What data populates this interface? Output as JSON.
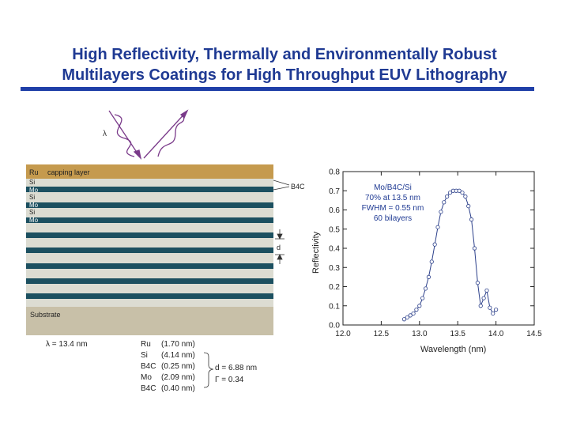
{
  "title": {
    "line1": "High Reflectivity, Thermally and Environmentally Robust",
    "line2": "Multilayers Coatings for High Throughput EUV Lithography"
  },
  "diagram": {
    "lambda_symbol": "λ",
    "capping_label_ru": "Ru",
    "capping_label_text": "capping layer",
    "layer_labels": [
      "Si",
      "Mo",
      "Si",
      "Mo",
      "Si",
      "Mo"
    ],
    "b4c_label": "B4C",
    "d_label": "d",
    "substrate_label": "Substrate",
    "wavelength_label": "λ = 13.4 nm",
    "materials": [
      {
        "name": "Ru",
        "thickness": "(1.70 nm)"
      },
      {
        "name": "Si",
        "thickness": "(4.14 nm)"
      },
      {
        "name": "B4C",
        "thickness": "(0.25 nm)"
      },
      {
        "name": "Mo",
        "thickness": "(2.09 nm)"
      },
      {
        "name": "B4C",
        "thickness": "(0.40 nm)"
      }
    ],
    "period": "d = 6.88 nm",
    "gamma": "Γ = 0.34",
    "colors": {
      "ru": "#c59a4e",
      "si": "#dcdcd2",
      "mo": "#1c5060",
      "substrate": "#c8c0a8"
    }
  },
  "chart_data": {
    "type": "scatter",
    "xlabel": "Wavelength (nm)",
    "ylabel": "Reflectivity",
    "xlim": [
      12.0,
      14.5
    ],
    "ylim": [
      0.0,
      0.8
    ],
    "xticks": [
      "12.0",
      "12.5",
      "13.0",
      "13.5",
      "14.0",
      "14.5"
    ],
    "yticks": [
      "0.0",
      "0.1",
      "0.2",
      "0.3",
      "0.4",
      "0.5",
      "0.6",
      "0.7",
      "0.8"
    ],
    "annotation": [
      "Mo/B4C/Si",
      "70% at 13.5 nm",
      "FWHM = 0.55 nm",
      "60 bilayers"
    ],
    "series": [
      {
        "x": [
          12.8,
          12.84,
          12.88,
          12.92,
          12.96,
          13.0,
          13.04,
          13.08,
          13.12,
          13.16,
          13.2,
          13.24,
          13.28,
          13.32,
          13.36,
          13.4,
          13.44,
          13.48,
          13.52,
          13.56,
          13.6,
          13.64,
          13.68,
          13.72,
          13.76,
          13.8,
          13.84,
          13.88,
          13.92,
          13.96,
          14.0
        ],
        "y": [
          0.03,
          0.04,
          0.05,
          0.06,
          0.08,
          0.1,
          0.14,
          0.19,
          0.25,
          0.33,
          0.42,
          0.51,
          0.59,
          0.64,
          0.67,
          0.69,
          0.7,
          0.7,
          0.7,
          0.69,
          0.67,
          0.62,
          0.55,
          0.4,
          0.22,
          0.1,
          0.14,
          0.18,
          0.09,
          0.06,
          0.08
        ]
      }
    ]
  }
}
